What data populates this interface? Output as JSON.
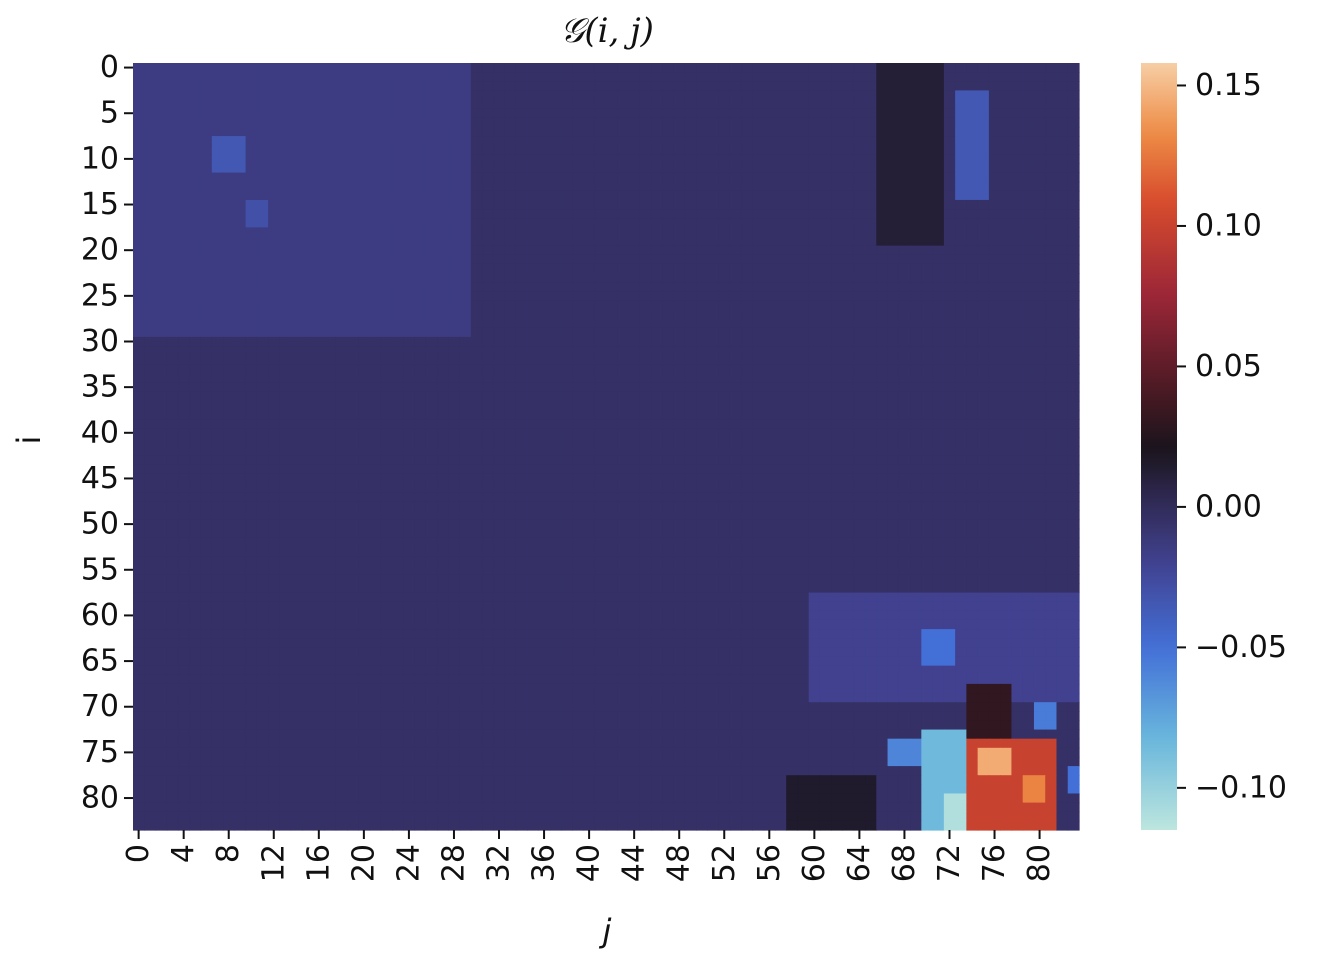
{
  "chart_data": {
    "type": "heatmap",
    "title": "𝒢(i, j)",
    "xlabel": "j",
    "ylabel": "i",
    "rows": 84,
    "cols": 84,
    "x_ticks": [
      0,
      4,
      8,
      12,
      16,
      20,
      24,
      28,
      32,
      36,
      40,
      44,
      48,
      52,
      56,
      60,
      64,
      68,
      72,
      76,
      80
    ],
    "y_ticks": [
      0,
      5,
      10,
      15,
      20,
      25,
      30,
      35,
      40,
      45,
      50,
      55,
      60,
      65,
      70,
      75,
      80
    ],
    "colorbar": {
      "vmin": -0.115,
      "vmax": 0.158,
      "center": 0.02,
      "ticks": [
        0.15,
        0.1,
        0.05,
        0.0,
        -0.05,
        -0.1
      ],
      "tick_labels": [
        "0.15",
        "0.10",
        "0.05",
        "0.00",
        "−0.05",
        "−0.10"
      ]
    },
    "background_value": -0.005,
    "regions": [
      {
        "i": [
          0,
          30
        ],
        "j": [
          0,
          30
        ],
        "value": -0.015
      },
      {
        "i": [
          8,
          12
        ],
        "j": [
          7,
          10
        ],
        "value": -0.035
      },
      {
        "i": [
          15,
          18
        ],
        "j": [
          10,
          12
        ],
        "value": -0.03
      },
      {
        "i": [
          0,
          20
        ],
        "j": [
          66,
          72
        ],
        "value": 0.012
      },
      {
        "i": [
          3,
          15
        ],
        "j": [
          73,
          76
        ],
        "value": -0.035
      },
      {
        "i": [
          58,
          70
        ],
        "j": [
          60,
          84
        ],
        "value": -0.02
      },
      {
        "i": [
          62,
          66
        ],
        "j": [
          70,
          73
        ],
        "value": -0.05
      },
      {
        "i": [
          68,
          75
        ],
        "j": [
          74,
          78
        ],
        "value": 0.03
      },
      {
        "i": [
          70,
          73
        ],
        "j": [
          80,
          82
        ],
        "value": -0.055
      },
      {
        "i": [
          74,
          77
        ],
        "j": [
          67,
          70
        ],
        "value": -0.06
      },
      {
        "i": [
          73,
          84
        ],
        "j": [
          70,
          74
        ],
        "value": -0.085
      },
      {
        "i": [
          80,
          84
        ],
        "j": [
          72,
          74
        ],
        "value": -0.11
      },
      {
        "i": [
          74,
          84
        ],
        "j": [
          74,
          82
        ],
        "value": 0.1
      },
      {
        "i": [
          75,
          78
        ],
        "j": [
          75,
          78
        ],
        "value": 0.145
      },
      {
        "i": [
          78,
          81
        ],
        "j": [
          79,
          81
        ],
        "value": 0.13
      },
      {
        "i": [
          78,
          84
        ],
        "j": [
          58,
          66
        ],
        "value": 0.015
      },
      {
        "i": [
          77,
          80
        ],
        "j": [
          83,
          84
        ],
        "value": -0.05
      }
    ]
  }
}
